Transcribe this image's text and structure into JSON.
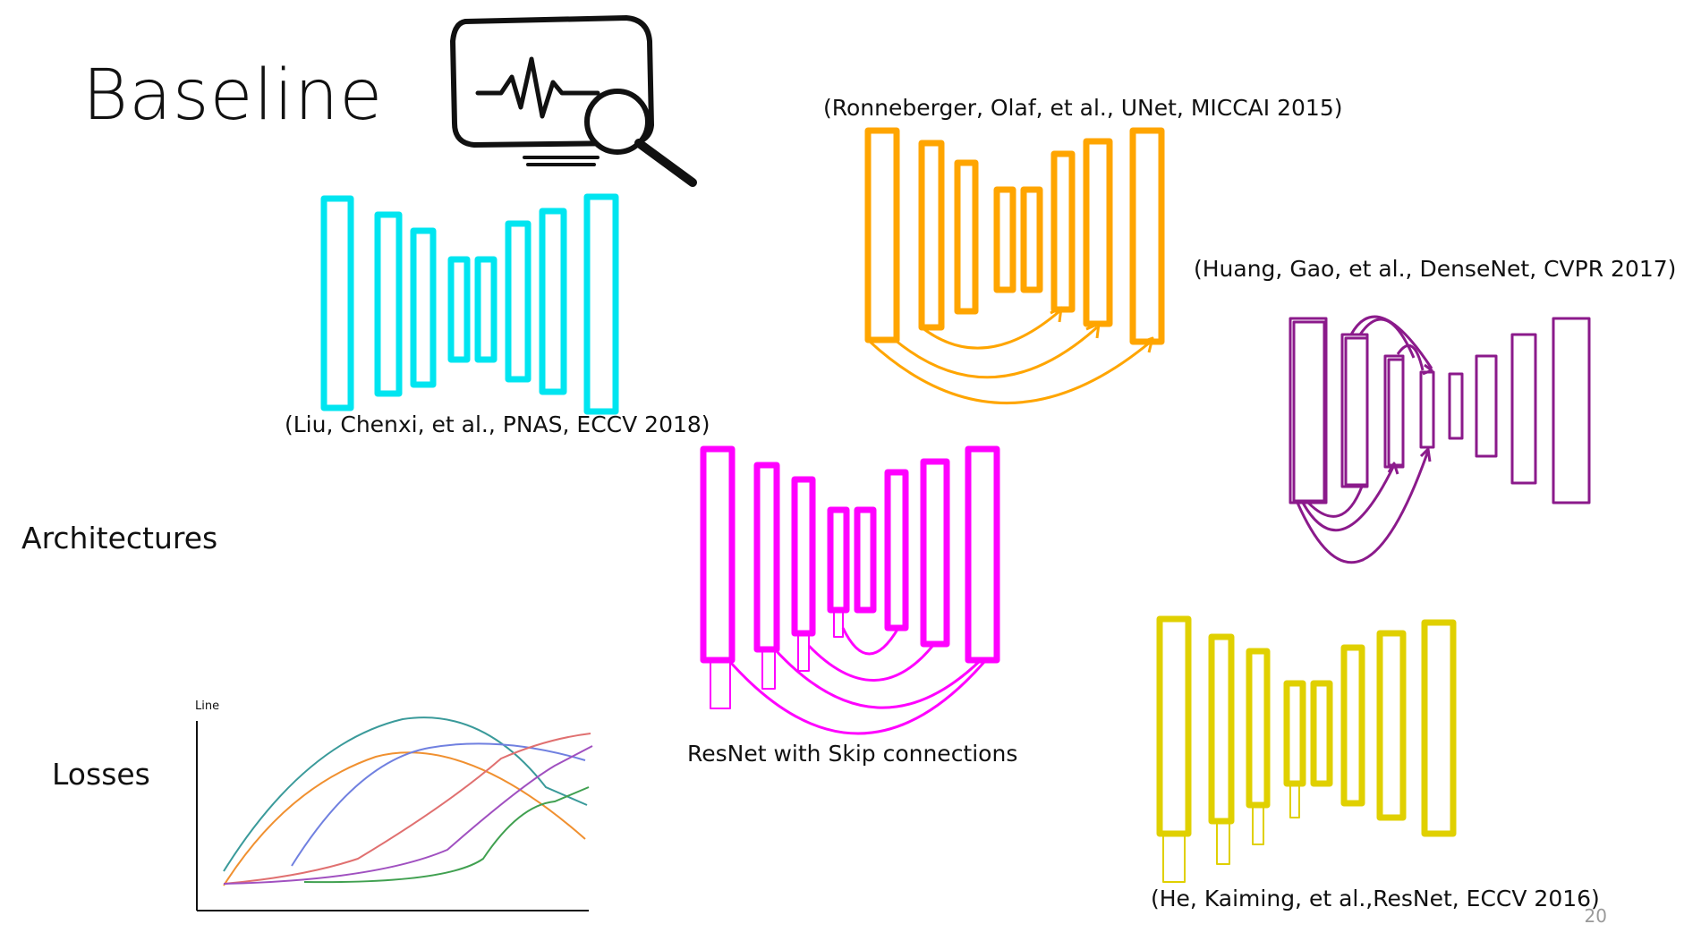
{
  "title": "Baseline",
  "sections": {
    "architectures": "Architectures",
    "losses": "Losses"
  },
  "citations": {
    "pnas": "(Liu, Chenxi, et al., PNAS, ECCV 2018)",
    "unet": "(Ronneberger, Olaf, et al., UNet, MICCAI  2015)",
    "densenet": "(Huang, Gao, et al., DenseNet, CVPR 2017)",
    "resnet_skip": "ResNet with Skip connections",
    "resnet": "(He, Kaiming, et al.,ResNet, ECCV 2016)"
  },
  "loss_chart": {
    "label": "Line"
  },
  "colors": {
    "pnas": "#00e5f0",
    "unet": "#ffa500",
    "densenet": "#8b1a8b",
    "resnet_skip": "#ff00ff",
    "resnet": "#e0d000"
  },
  "icon": "monitor-search-icon",
  "page_number": "20"
}
